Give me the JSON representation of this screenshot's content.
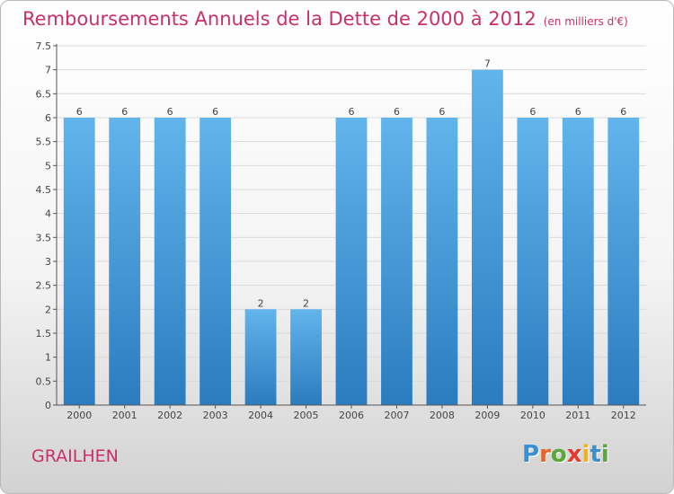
{
  "header": {
    "title": "Remboursements Annuels de la Dette de 2000 à 2012",
    "unit": "(en milliers d'€)"
  },
  "commune": "GRAILHEN",
  "logo": {
    "letters": [
      {
        "char": "P",
        "color": "#3a8fd0"
      },
      {
        "char": "r",
        "color": "#e8632a"
      },
      {
        "char": "o",
        "color": "#5aa83a"
      },
      {
        "char": "x",
        "color": "#e23a2e"
      },
      {
        "char": "i",
        "color": "#f0b020"
      },
      {
        "char": "t",
        "color": "#3a8fd0"
      },
      {
        "char": "i",
        "color": "#5aa83a"
      }
    ]
  },
  "colors": {
    "bar_top": "#62b4ec",
    "bar_bottom": "#2a7cbf",
    "accent": "#c9306a"
  },
  "chart_data": {
    "type": "bar",
    "title": "Remboursements Annuels de la Dette de 2000 à 2012",
    "categories": [
      "2000",
      "2001",
      "2002",
      "2003",
      "2004",
      "2005",
      "2006",
      "2007",
      "2008",
      "2009",
      "2010",
      "2011",
      "2012"
    ],
    "values": [
      6,
      6,
      6,
      6,
      2,
      2,
      6,
      6,
      6,
      7,
      6,
      6,
      6
    ],
    "value_labels": [
      "6",
      "6",
      "6",
      "6",
      "2",
      "2",
      "6",
      "6",
      "6",
      "7",
      "6",
      "6",
      "6"
    ],
    "ylim": [
      0,
      7.5
    ],
    "y_ticks": [
      "0",
      "0.5",
      "1",
      "1.5",
      "2",
      "2.5",
      "3",
      "3.5",
      "4",
      "4.5",
      "5",
      "5.5",
      "6",
      "6.5",
      "7",
      "7.5"
    ],
    "grid": true,
    "xlabel": "",
    "ylabel": ""
  }
}
